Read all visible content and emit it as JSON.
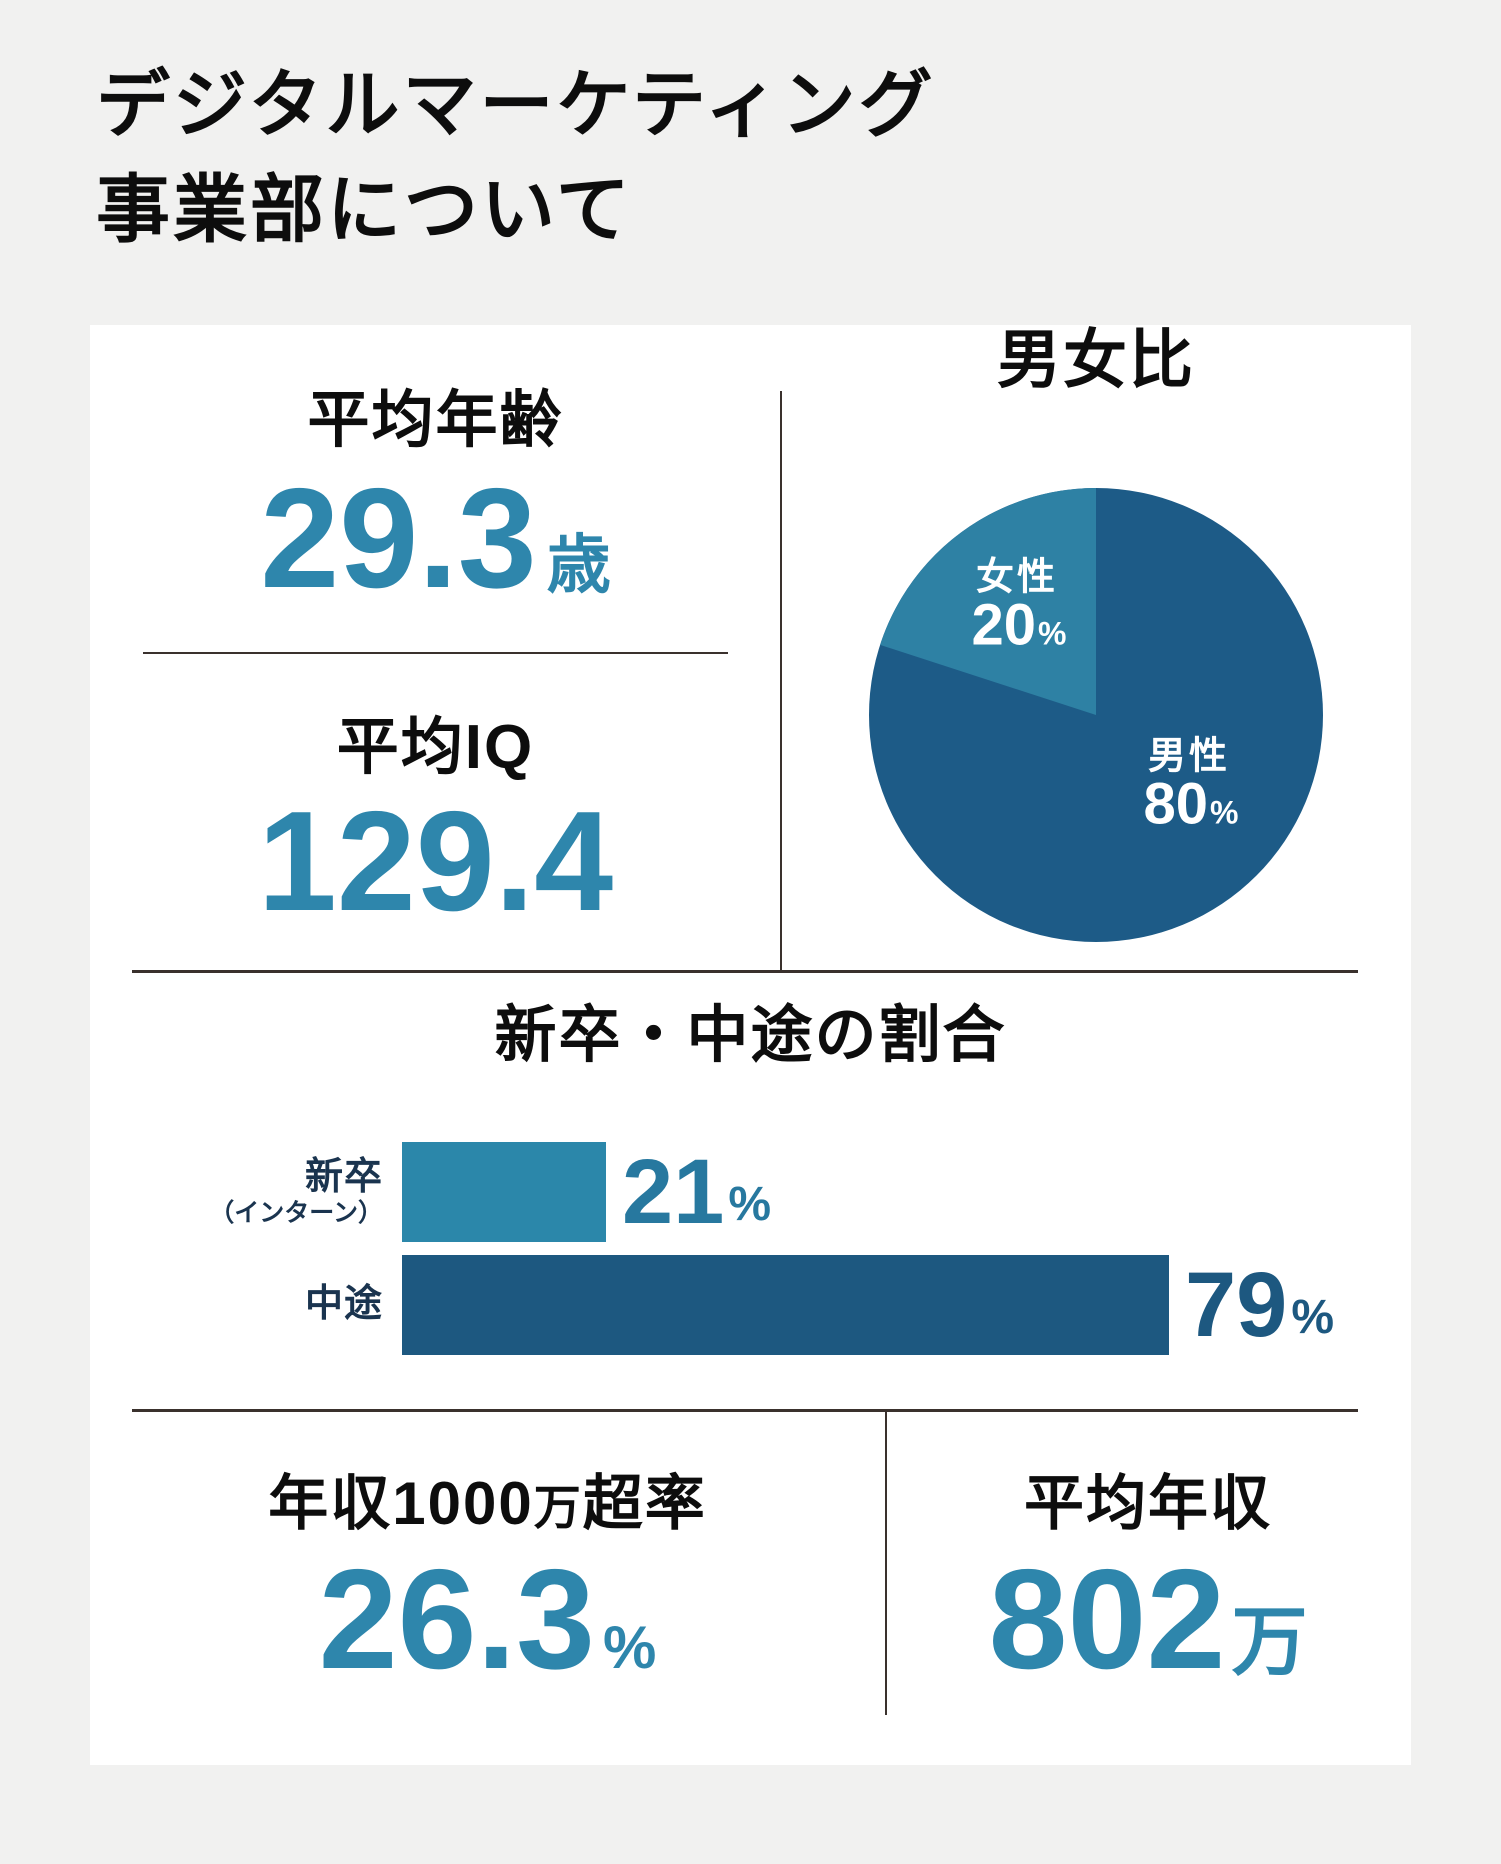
{
  "page": {
    "title_line1": "デジタルマーケティング",
    "title_line2": "事業部について"
  },
  "colors": {
    "background": "#F1F1F0",
    "card": "#FFFFFF",
    "accent_teal": "#2E86AC",
    "pie_male_navy": "#1D5B87",
    "pie_female_teal": "#2E81A4",
    "bar_teal": "#2B87AA",
    "bar_navy": "#1D5880",
    "bar_label_navy": "#1A344F",
    "divider": "#3A312D"
  },
  "stats": {
    "average_age": {
      "label": "平均年齢",
      "value": "29.3",
      "unit": "歳"
    },
    "average_iq": {
      "label": "平均IQ",
      "value": "129.4"
    },
    "income_over_10m_rate": {
      "label_p1": "年収",
      "label_p2": "1000",
      "label_p3": "万",
      "label_p4": "超率",
      "value": "26.3",
      "unit": "%"
    },
    "average_income": {
      "label": "平均年収",
      "value": "802",
      "unit": "万"
    }
  },
  "gender": {
    "title": "男女比",
    "female_label": "女性",
    "female_value": "20",
    "male_label": "男性",
    "male_value": "80",
    "percent_sign": "%"
  },
  "recruit": {
    "title": "新卒・中途の割合",
    "percent_sign": "%",
    "rows": [
      {
        "label": "新卒",
        "sublabel": "（インターン）",
        "value": "21"
      },
      {
        "label": "中途",
        "sublabel": "",
        "value": "79"
      }
    ]
  },
  "chart_data": [
    {
      "type": "pie",
      "title": "男女比",
      "labels": [
        "男性",
        "女性"
      ],
      "values": [
        80,
        20
      ],
      "unit": "%",
      "colors": [
        "#1D5B87",
        "#2E81A4"
      ],
      "layout": "female slice drawn counter-clockwise from 12 o'clock, labels inside slices"
    },
    {
      "type": "bar",
      "orientation": "horizontal",
      "title": "新卒・中途の割合",
      "categories": [
        "新卒（インターン）",
        "中途"
      ],
      "values": [
        21,
        79
      ],
      "unit": "%",
      "colors": [
        "#2B87AA",
        "#1D5880"
      ],
      "xlim": [
        0,
        100
      ],
      "value_labels": "right of bars"
    }
  ]
}
